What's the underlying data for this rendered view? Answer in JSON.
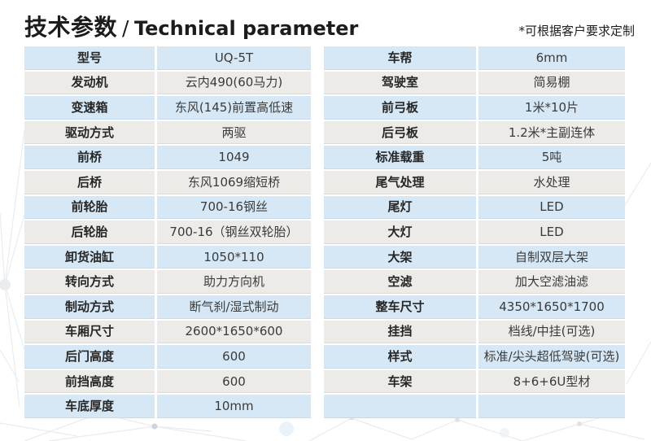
{
  "header": {
    "title_zh": "技术参数",
    "title_sep": "/",
    "title_en": "Technical parameter",
    "note": "*可根据客户要求定制"
  },
  "colors": {
    "row_blue": "#d6e8f6",
    "row_gray": "#ecebe8",
    "row_blue_edge": "#c3dbec",
    "row_gray_edge": "#ddd9d5",
    "title_text": "#1c1c1c",
    "cell_text": "#3a3a3a"
  },
  "tables": {
    "left": {
      "rows": [
        {
          "label": "型号",
          "value": "UQ-5T"
        },
        {
          "label": "发动机",
          "value": "云内490(60马力)"
        },
        {
          "label": "变速箱",
          "value": "东风(145)前置高低速"
        },
        {
          "label": "驱动方式",
          "value": "两驱"
        },
        {
          "label": "前桥",
          "value": "1049"
        },
        {
          "label": "后桥",
          "value": "东风1069缩短桥"
        },
        {
          "label": "前轮胎",
          "value": "700-16钢丝"
        },
        {
          "label": "后轮胎",
          "value": "700-16（钢丝双轮胎）"
        },
        {
          "label": "卸货油缸",
          "value": "1050*110"
        },
        {
          "label": "转向方式",
          "value": "助力方向机"
        },
        {
          "label": "制动方式",
          "value": "断气刹/湿式制动"
        },
        {
          "label": "车厢尺寸",
          "value": "2600*1650*600"
        },
        {
          "label": "后门高度",
          "value": "600"
        },
        {
          "label": "前挡高度",
          "value": "600"
        },
        {
          "label": "车底厚度",
          "value": "10mm"
        }
      ]
    },
    "right": {
      "rows": [
        {
          "label": "车帮",
          "value": "6mm"
        },
        {
          "label": "驾驶室",
          "value": "简易棚"
        },
        {
          "label": "前弓板",
          "value": "1米*10片"
        },
        {
          "label": "后弓板",
          "value": "1.2米*主副连体"
        },
        {
          "label": "标准载重",
          "value": "5吨"
        },
        {
          "label": "尾气处理",
          "value": "水处理"
        },
        {
          "label": "尾灯",
          "value": "LED"
        },
        {
          "label": "大灯",
          "value": "LED"
        },
        {
          "label": "大架",
          "value": "自制双层大架"
        },
        {
          "label": "空滤",
          "value": "加大空滤油滤"
        },
        {
          "label": "整车尺寸",
          "value": "4350*1650*1700"
        },
        {
          "label": "挂挡",
          "value": "档线/中挂(可选)"
        },
        {
          "label": "样式",
          "value": "标准/尖头超低驾驶(可选)"
        },
        {
          "label": "车架",
          "value": "8+6+6U型材"
        },
        {
          "label": "",
          "value": ""
        }
      ]
    }
  }
}
